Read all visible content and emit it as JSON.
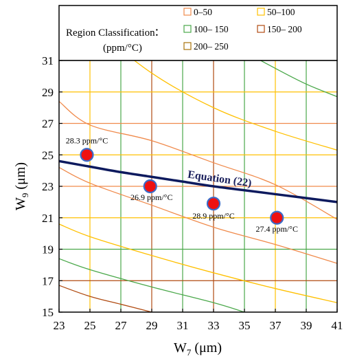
{
  "chart_data": {
    "type": "scatter",
    "title": "",
    "xlabel": "W",
    "xlabel_sub": "7",
    "xlabel_unit": " (μm)",
    "ylabel": "W",
    "ylabel_sub": "9",
    "ylabel_unit": " (μm)",
    "xlim": [
      23,
      41
    ],
    "ylim": [
      15,
      31
    ],
    "x_ticks": [
      23,
      25,
      27,
      29,
      31,
      33,
      35,
      37,
      39,
      41
    ],
    "y_ticks": [
      15,
      17,
      19,
      21,
      23,
      25,
      27,
      29,
      31
    ],
    "grid": true,
    "legend": {
      "title_line1": "Region Classification",
      "title_colon": ":",
      "title_line2": "(ppm/°C)",
      "placement": "top",
      "entries": [
        {
          "label": "0–50",
          "color": "#f08a4b"
        },
        {
          "label": "50–100",
          "color": "#ffc000"
        },
        {
          "label": "100– 150",
          "color": "#4aa84a"
        },
        {
          "label": "150– 200",
          "color": "#b04a10"
        },
        {
          "label": "200– 250",
          "color": "#a8730a"
        }
      ]
    },
    "curve": {
      "name": "Equation (22)",
      "color": "#0d1a5e",
      "x": [
        23,
        25,
        27,
        29,
        31,
        33,
        35,
        37,
        39,
        41
      ],
      "y": [
        24.6,
        24.25,
        23.9,
        23.6,
        23.3,
        23.0,
        22.75,
        22.5,
        22.25,
        22.0
      ]
    },
    "points": [
      {
        "x": 24.8,
        "y": 25.0,
        "label": "28.3 ppm/°C"
      },
      {
        "x": 28.9,
        "y": 23.0,
        "label": "26.9 ppm/°C"
      },
      {
        "x": 33.0,
        "y": 21.9,
        "label": "28.9 ppm/°C"
      },
      {
        "x": 37.1,
        "y": 21.0,
        "label": "27.4 ppm/°C"
      }
    ],
    "point_color": "#ee1111",
    "point_edge": "#3a6cc9",
    "contours": [
      {
        "color": "#f08a4b",
        "x": [
          23,
          41
        ],
        "y": [
          28.4,
          20.9
        ],
        "via": [
          {
            "x": 25,
            "y": 26.9
          },
          {
            "x": 29,
            "y": 25.9
          },
          {
            "x": 33,
            "y": 24.5
          },
          {
            "x": 37,
            "y": 23.1
          }
        ]
      },
      {
        "color": "#f08a4b",
        "x": [
          23,
          41
        ],
        "y": [
          24.2,
          18.1
        ],
        "via": [
          {
            "x": 25,
            "y": 23.2
          },
          {
            "x": 29,
            "y": 21.8
          },
          {
            "x": 33,
            "y": 20.4
          },
          {
            "x": 37,
            "y": 19.3
          }
        ]
      },
      {
        "color": "#ffc000",
        "x": [
          23,
          41
        ],
        "y": [
          35.2,
          25.3
        ],
        "via": [
          {
            "x": 25,
            "y": 33.3
          },
          {
            "x": 29,
            "y": 30.2
          },
          {
            "x": 33,
            "y": 28.0
          },
          {
            "x": 37,
            "y": 26.5
          }
        ]
      },
      {
        "color": "#ffc000",
        "x": [
          23,
          41
        ],
        "y": [
          20.6,
          15.6
        ],
        "via": [
          {
            "x": 25,
            "y": 19.8
          },
          {
            "x": 29,
            "y": 18.6
          },
          {
            "x": 33,
            "y": 17.5
          },
          {
            "x": 37,
            "y": 16.5
          }
        ]
      },
      {
        "color": "#4aa84a",
        "x": [
          33,
          41
        ],
        "y": [
          33.0,
          28.7
        ],
        "via": [
          {
            "x": 35,
            "y": 31.6
          },
          {
            "x": 37,
            "y": 30.5
          },
          {
            "x": 39,
            "y": 29.5
          }
        ]
      },
      {
        "color": "#4aa84a",
        "x": [
          23,
          35
        ],
        "y": [
          18.4,
          15.0
        ],
        "via": [
          {
            "x": 25,
            "y": 17.7
          },
          {
            "x": 29,
            "y": 16.6
          },
          {
            "x": 33,
            "y": 15.6
          }
        ]
      },
      {
        "color": "#b04a10",
        "x": [
          23,
          29
        ],
        "y": [
          16.7,
          15.0
        ],
        "via": [
          {
            "x": 25,
            "y": 16.0
          },
          {
            "x": 27,
            "y": 15.5
          }
        ]
      }
    ],
    "grid_lines": {
      "x": [
        {
          "v": 25,
          "color": "#ffc000"
        },
        {
          "v": 27,
          "color": "#4aa84a"
        },
        {
          "v": 29,
          "color": "#b04a10"
        },
        {
          "v": 31,
          "color": "#4aa84a"
        },
        {
          "v": 33,
          "color": "#b04a10"
        },
        {
          "v": 35,
          "color": "#4aa84a"
        },
        {
          "v": 37,
          "color": "#ffc000"
        },
        {
          "v": 39,
          "color": "#4aa84a"
        }
      ],
      "y": [
        {
          "v": 17,
          "color": "#b04a10"
        },
        {
          "v": 19,
          "color": "#4aa84a"
        },
        {
          "v": 21,
          "color": "#ffc000"
        },
        {
          "v": 23,
          "color": "#f08a4b"
        },
        {
          "v": 25,
          "color": "#ffc000"
        },
        {
          "v": 27,
          "color": "#f08a4b"
        },
        {
          "v": 29,
          "color": "#ffc000"
        }
      ]
    }
  }
}
